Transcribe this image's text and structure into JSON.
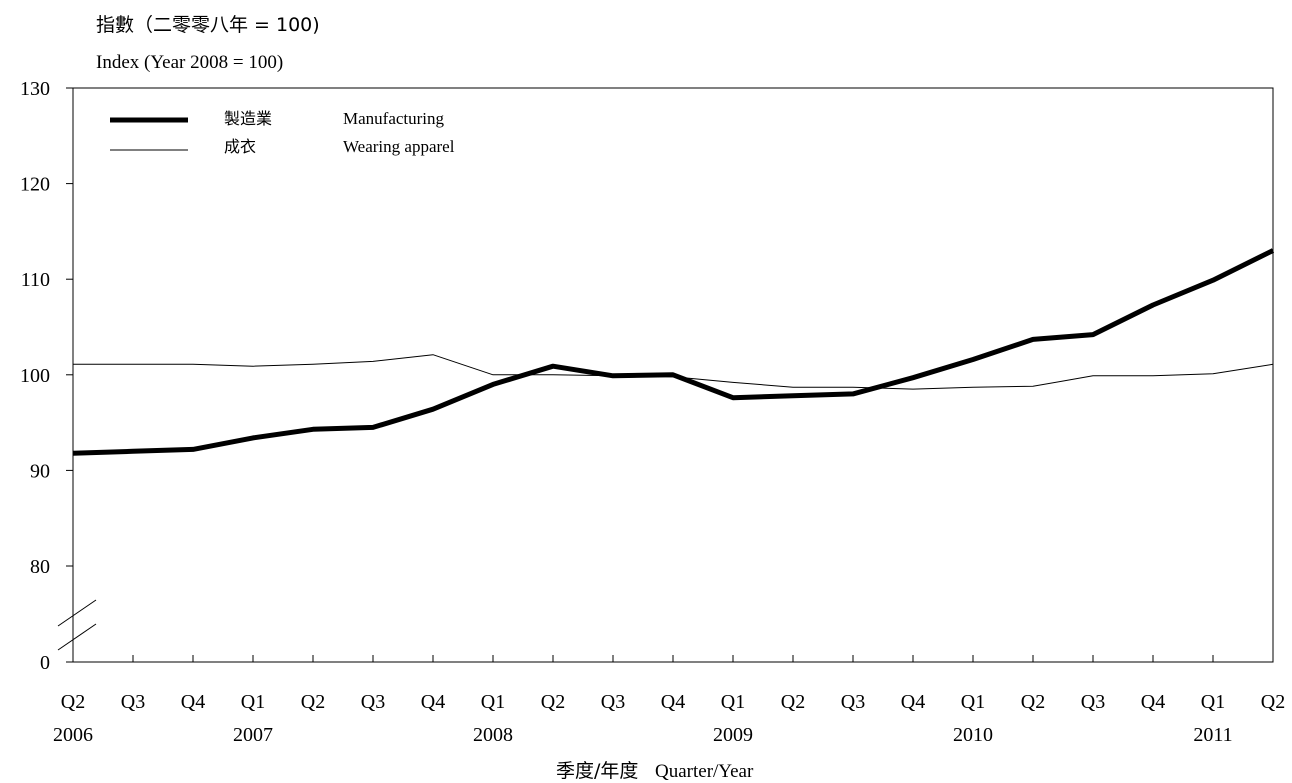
{
  "chart_data": {
    "type": "line",
    "title_zh": "指數（二零零八年 = 100)",
    "title_en": "Index (Year 2008 = 100)",
    "xlabel_zh": "季度/年度",
    "xlabel_en": "Quarter/Year",
    "quarters": [
      "Q2",
      "Q3",
      "Q4",
      "Q1",
      "Q2",
      "Q3",
      "Q4",
      "Q1",
      "Q2",
      "Q3",
      "Q4",
      "Q1",
      "Q2",
      "Q3",
      "Q4",
      "Q1",
      "Q2",
      "Q3",
      "Q4",
      "Q1",
      "Q2"
    ],
    "years": [
      {
        "label": "2006",
        "index": 0
      },
      {
        "label": "2007",
        "index": 3
      },
      {
        "label": "2008",
        "index": 7
      },
      {
        "label": "2009",
        "index": 11
      },
      {
        "label": "2010",
        "index": 15
      },
      {
        "label": "2011",
        "index": 19
      }
    ],
    "yticks": [
      0,
      80,
      90,
      100,
      110,
      120,
      130
    ],
    "ylim": [
      75,
      130
    ],
    "axis_break": true,
    "series": [
      {
        "name_zh": "製造業",
        "name_en": "Manufacturing",
        "style": "thick",
        "values": [
          91.8,
          92.0,
          92.2,
          93.4,
          94.3,
          94.5,
          96.4,
          99.0,
          100.9,
          99.9,
          100.0,
          97.6,
          97.8,
          98.0,
          99.7,
          101.6,
          103.7,
          104.2,
          107.3,
          109.9,
          113.0
        ]
      },
      {
        "name_zh": "成衣",
        "name_en": "Wearing apparel",
        "style": "thin",
        "values": [
          101.1,
          101.1,
          101.1,
          100.9,
          101.1,
          101.4,
          102.1,
          100.0,
          100.0,
          99.9,
          99.8,
          99.2,
          98.7,
          98.7,
          98.5,
          98.7,
          98.8,
          99.9,
          99.9,
          100.1,
          101.1
        ]
      }
    ],
    "legend_position": "top-left",
    "grid": false,
    "colors": {
      "line": "#000000",
      "background": "#ffffff"
    }
  }
}
